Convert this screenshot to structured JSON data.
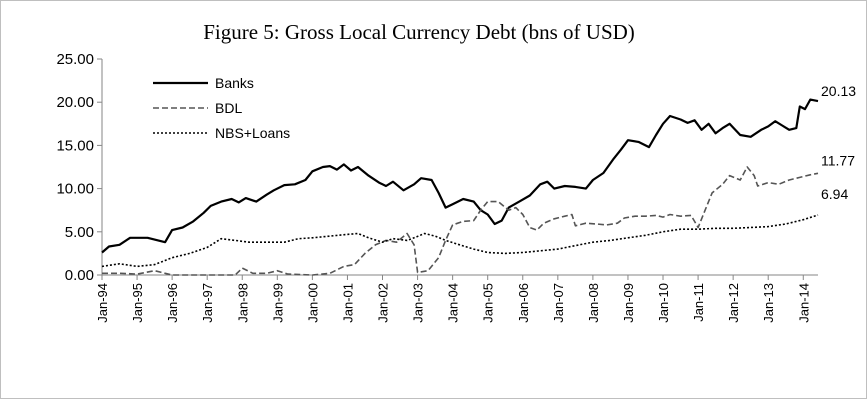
{
  "chart_data": {
    "type": "line",
    "title": "Figure 5: Gross Local Currency Debt (bns of USD)",
    "xlabel": "",
    "ylabel": "",
    "ylim": [
      0,
      25
    ],
    "yticks": [
      "0.00",
      "5.00",
      "10.00",
      "15.00",
      "20.00",
      "25.00"
    ],
    "x_range": [
      1994.0,
      2014.42
    ],
    "xticks": [
      {
        "label": "Jan-94",
        "x": 1994
      },
      {
        "label": "Jan-95",
        "x": 1995
      },
      {
        "label": "Jan-96",
        "x": 1996
      },
      {
        "label": "Jan-97",
        "x": 1997
      },
      {
        "label": "Jan-98",
        "x": 1998
      },
      {
        "label": "Jan-99",
        "x": 1999
      },
      {
        "label": "Jan-00",
        "x": 2000
      },
      {
        "label": "Jan-01",
        "x": 2001
      },
      {
        "label": "Jan-02",
        "x": 2002
      },
      {
        "label": "Jan-03",
        "x": 2003
      },
      {
        "label": "Jan-04",
        "x": 2004
      },
      {
        "label": "Jan-05",
        "x": 2005
      },
      {
        "label": "Jan-06",
        "x": 2006
      },
      {
        "label": "Jan-07",
        "x": 2007
      },
      {
        "label": "Jan-08",
        "x": 2008
      },
      {
        "label": "Jan-09",
        "x": 2009
      },
      {
        "label": "Jan-10",
        "x": 2010
      },
      {
        "label": "Jan-11",
        "x": 2011
      },
      {
        "label": "Jan-12",
        "x": 2012
      },
      {
        "label": "Jan-13",
        "x": 2013
      },
      {
        "label": "Jan-14",
        "x": 2014
      }
    ],
    "legend_position": "top-left",
    "grid": false,
    "series": [
      {
        "name": "Banks",
        "style": "solid",
        "color": "#000000",
        "end_label": "20.13",
        "points": [
          [
            1994.0,
            2.6
          ],
          [
            1994.2,
            3.3
          ],
          [
            1994.5,
            3.5
          ],
          [
            1994.8,
            4.3
          ],
          [
            1995.0,
            4.3
          ],
          [
            1995.3,
            4.3
          ],
          [
            1995.6,
            4.0
          ],
          [
            1995.8,
            3.8
          ],
          [
            1996.0,
            5.2
          ],
          [
            1996.3,
            5.5
          ],
          [
            1996.6,
            6.2
          ],
          [
            1996.9,
            7.2
          ],
          [
            1997.1,
            8.0
          ],
          [
            1997.4,
            8.5
          ],
          [
            1997.7,
            8.8
          ],
          [
            1997.9,
            8.4
          ],
          [
            1998.1,
            8.9
          ],
          [
            1998.4,
            8.5
          ],
          [
            1998.7,
            9.3
          ],
          [
            1998.9,
            9.8
          ],
          [
            1999.2,
            10.4
          ],
          [
            1999.5,
            10.5
          ],
          [
            1999.8,
            11.0
          ],
          [
            2000.0,
            12.0
          ],
          [
            2000.3,
            12.5
          ],
          [
            2000.5,
            12.6
          ],
          [
            2000.7,
            12.2
          ],
          [
            2000.9,
            12.8
          ],
          [
            2001.1,
            12.1
          ],
          [
            2001.3,
            12.5
          ],
          [
            2001.6,
            11.5
          ],
          [
            2001.9,
            10.7
          ],
          [
            2002.1,
            10.3
          ],
          [
            2002.3,
            10.8
          ],
          [
            2002.6,
            9.8
          ],
          [
            2002.9,
            10.5
          ],
          [
            2003.1,
            11.2
          ],
          [
            2003.4,
            11.0
          ],
          [
            2003.6,
            9.5
          ],
          [
            2003.8,
            7.8
          ],
          [
            2004.0,
            8.2
          ],
          [
            2004.3,
            8.8
          ],
          [
            2004.6,
            8.5
          ],
          [
            2004.8,
            7.5
          ],
          [
            2005.0,
            7.0
          ],
          [
            2005.2,
            5.9
          ],
          [
            2005.4,
            6.3
          ],
          [
            2005.6,
            7.8
          ],
          [
            2005.9,
            8.5
          ],
          [
            2006.2,
            9.2
          ],
          [
            2006.5,
            10.5
          ],
          [
            2006.7,
            10.8
          ],
          [
            2006.9,
            10.0
          ],
          [
            2007.2,
            10.3
          ],
          [
            2007.5,
            10.2
          ],
          [
            2007.8,
            10.0
          ],
          [
            2008.0,
            11.0
          ],
          [
            2008.3,
            11.8
          ],
          [
            2008.6,
            13.5
          ],
          [
            2008.8,
            14.5
          ],
          [
            2009.0,
            15.6
          ],
          [
            2009.3,
            15.4
          ],
          [
            2009.6,
            14.8
          ],
          [
            2009.8,
            16.2
          ],
          [
            2010.0,
            17.5
          ],
          [
            2010.2,
            18.4
          ],
          [
            2010.5,
            18.0
          ],
          [
            2010.7,
            17.6
          ],
          [
            2010.9,
            17.9
          ],
          [
            2011.1,
            16.8
          ],
          [
            2011.3,
            17.5
          ],
          [
            2011.5,
            16.4
          ],
          [
            2011.7,
            17.0
          ],
          [
            2011.9,
            17.5
          ],
          [
            2012.2,
            16.2
          ],
          [
            2012.5,
            16.0
          ],
          [
            2012.8,
            16.8
          ],
          [
            2013.0,
            17.2
          ],
          [
            2013.2,
            17.8
          ],
          [
            2013.4,
            17.3
          ],
          [
            2013.6,
            16.8
          ],
          [
            2013.8,
            17.0
          ],
          [
            2013.9,
            19.5
          ],
          [
            2014.05,
            19.2
          ],
          [
            2014.2,
            20.3
          ],
          [
            2014.42,
            20.13
          ]
        ]
      },
      {
        "name": "BDL",
        "style": "dashed",
        "color": "#555555",
        "end_label": "11.77",
        "points": [
          [
            1994.0,
            0.2
          ],
          [
            1994.5,
            0.2
          ],
          [
            1995.0,
            0.1
          ],
          [
            1995.5,
            0.5
          ],
          [
            1995.8,
            0.2
          ],
          [
            1996.0,
            0.0
          ],
          [
            1997.0,
            0.0
          ],
          [
            1997.8,
            0.0
          ],
          [
            1998.0,
            0.8
          ],
          [
            1998.3,
            0.2
          ],
          [
            1998.7,
            0.2
          ],
          [
            1999.0,
            0.5
          ],
          [
            1999.3,
            0.1
          ],
          [
            2000.0,
            0.0
          ],
          [
            2000.5,
            0.2
          ],
          [
            2000.9,
            1.0
          ],
          [
            2001.2,
            1.2
          ],
          [
            2001.5,
            2.5
          ],
          [
            2001.8,
            3.5
          ],
          [
            2002.1,
            4.0
          ],
          [
            2002.4,
            3.8
          ],
          [
            2002.7,
            4.8
          ],
          [
            2002.9,
            3.5
          ],
          [
            2003.0,
            0.3
          ],
          [
            2003.3,
            0.5
          ],
          [
            2003.6,
            2.0
          ],
          [
            2003.8,
            4.0
          ],
          [
            2004.0,
            5.8
          ],
          [
            2004.3,
            6.2
          ],
          [
            2004.6,
            6.3
          ],
          [
            2004.8,
            7.5
          ],
          [
            2005.0,
            8.5
          ],
          [
            2005.3,
            8.5
          ],
          [
            2005.6,
            7.5
          ],
          [
            2005.8,
            7.8
          ],
          [
            2006.0,
            7.0
          ],
          [
            2006.2,
            5.5
          ],
          [
            2006.4,
            5.2
          ],
          [
            2006.6,
            6.0
          ],
          [
            2006.9,
            6.5
          ],
          [
            2007.2,
            6.8
          ],
          [
            2007.4,
            7.0
          ],
          [
            2007.5,
            5.7
          ],
          [
            2007.8,
            6.0
          ],
          [
            2008.1,
            5.9
          ],
          [
            2008.4,
            5.8
          ],
          [
            2008.7,
            6.0
          ],
          [
            2008.9,
            6.6
          ],
          [
            2009.2,
            6.8
          ],
          [
            2009.5,
            6.8
          ],
          [
            2009.8,
            6.9
          ],
          [
            2010.0,
            6.7
          ],
          [
            2010.2,
            7.0
          ],
          [
            2010.5,
            6.8
          ],
          [
            2010.8,
            6.9
          ],
          [
            2011.0,
            5.5
          ],
          [
            2011.2,
            7.5
          ],
          [
            2011.4,
            9.5
          ],
          [
            2011.7,
            10.5
          ],
          [
            2011.9,
            11.5
          ],
          [
            2012.2,
            11.0
          ],
          [
            2012.4,
            12.5
          ],
          [
            2012.6,
            11.5
          ],
          [
            2012.7,
            10.3
          ],
          [
            2013.0,
            10.7
          ],
          [
            2013.3,
            10.5
          ],
          [
            2013.6,
            11.0
          ],
          [
            2013.9,
            11.3
          ],
          [
            2014.2,
            11.6
          ],
          [
            2014.42,
            11.77
          ]
        ]
      },
      {
        "name": "NBS+Loans",
        "style": "dotted",
        "color": "#000000",
        "end_label": "6.94",
        "points": [
          [
            1994.0,
            1.0
          ],
          [
            1994.5,
            1.3
          ],
          [
            1995.0,
            1.0
          ],
          [
            1995.5,
            1.2
          ],
          [
            1996.0,
            2.0
          ],
          [
            1996.5,
            2.5
          ],
          [
            1997.0,
            3.2
          ],
          [
            1997.4,
            4.2
          ],
          [
            1997.8,
            4.0
          ],
          [
            1998.2,
            3.8
          ],
          [
            1998.7,
            3.8
          ],
          [
            1999.2,
            3.8
          ],
          [
            1999.6,
            4.2
          ],
          [
            2000.0,
            4.3
          ],
          [
            2000.5,
            4.5
          ],
          [
            2001.0,
            4.7
          ],
          [
            2001.3,
            4.8
          ],
          [
            2001.6,
            4.3
          ],
          [
            2002.0,
            3.8
          ],
          [
            2002.3,
            4.2
          ],
          [
            2002.7,
            4.0
          ],
          [
            2002.9,
            4.3
          ],
          [
            2003.2,
            4.8
          ],
          [
            2003.5,
            4.5
          ],
          [
            2003.8,
            4.0
          ],
          [
            2004.2,
            3.5
          ],
          [
            2004.6,
            3.0
          ],
          [
            2005.0,
            2.6
          ],
          [
            2005.5,
            2.5
          ],
          [
            2006.0,
            2.6
          ],
          [
            2006.5,
            2.8
          ],
          [
            2007.0,
            3.0
          ],
          [
            2007.5,
            3.4
          ],
          [
            2008.0,
            3.8
          ],
          [
            2008.5,
            4.0
          ],
          [
            2009.0,
            4.3
          ],
          [
            2009.5,
            4.6
          ],
          [
            2010.0,
            5.0
          ],
          [
            2010.5,
            5.3
          ],
          [
            2011.0,
            5.3
          ],
          [
            2011.5,
            5.4
          ],
          [
            2012.0,
            5.4
          ],
          [
            2012.5,
            5.5
          ],
          [
            2013.0,
            5.6
          ],
          [
            2013.5,
            5.9
          ],
          [
            2014.0,
            6.4
          ],
          [
            2014.42,
            6.94
          ]
        ]
      }
    ]
  }
}
